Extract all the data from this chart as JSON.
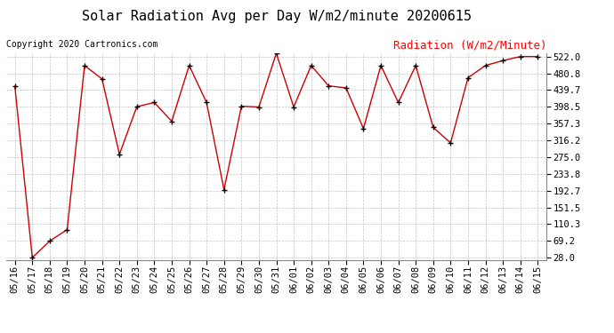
{
  "title": "Solar Radiation Avg per Day W/m2/minute 20200615",
  "copyright": "Copyright 2020 Cartronics.com",
  "legend_label": "Radiation (W/m2/Minute)",
  "x_labels": [
    "05/16",
    "05/17",
    "05/18",
    "05/19",
    "05/20",
    "05/21",
    "05/22",
    "05/23",
    "05/24",
    "05/25",
    "05/26",
    "05/27",
    "05/28",
    "05/29",
    "05/30",
    "05/31",
    "06/01",
    "06/02",
    "06/03",
    "06/04",
    "06/05",
    "06/06",
    "06/07",
    "06/08",
    "06/09",
    "06/10",
    "06/11",
    "06/12",
    "06/13",
    "06/14",
    "06/15"
  ],
  "y_values": [
    449,
    28,
    69,
    97,
    500,
    467,
    282,
    399,
    409,
    363,
    500,
    409,
    195,
    400,
    398,
    530,
    398,
    500,
    450,
    445,
    345,
    500,
    409,
    500,
    348,
    310,
    470,
    500,
    512,
    522,
    522
  ],
  "y_ticks": [
    28.0,
    69.2,
    110.3,
    151.5,
    192.7,
    233.8,
    275.0,
    316.2,
    357.3,
    398.5,
    439.7,
    480.8,
    522.0
  ],
  "line_color": "#cc0000",
  "marker_color": "#000000",
  "background_color": "#ffffff",
  "grid_color": "#aaaaaa",
  "title_fontsize": 11,
  "copyright_fontsize": 7,
  "legend_fontsize": 9,
  "tick_fontsize": 7.5
}
